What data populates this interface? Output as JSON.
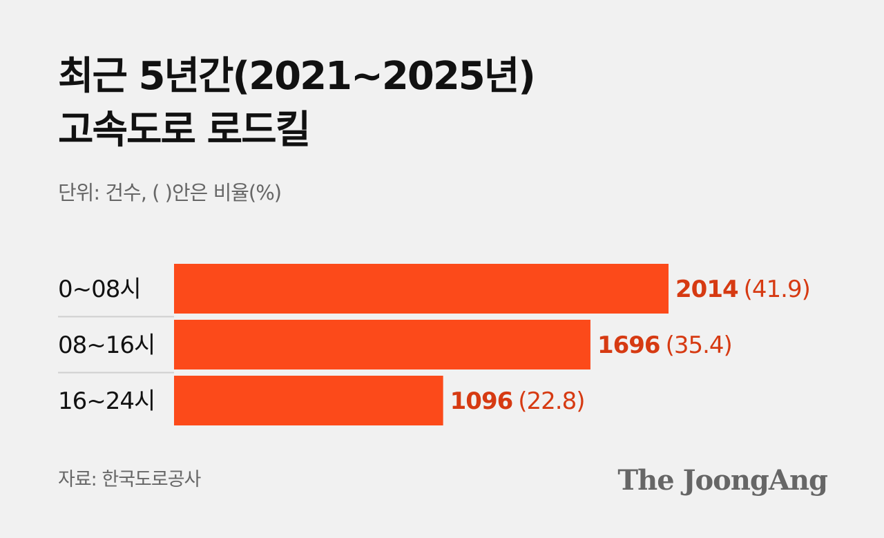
{
  "title": {
    "line1": "최근 5년간(2021~2025년)",
    "line2": "고속도로 로드킬"
  },
  "unit_note": "단위: 건수, ( )안은 비율(%)",
  "source": "자료: 한국도로공사",
  "logo": "The JoongAng",
  "colors": {
    "bar": "#fc4a1a",
    "value_label": "#d63a12",
    "background": "#f1f1f1"
  },
  "chart_data": {
    "type": "bar",
    "orientation": "horizontal",
    "categories": [
      "0~08시",
      "08~16시",
      "16~24시"
    ],
    "values": [
      2014,
      1696,
      1096
    ],
    "percentages": [
      "41.9",
      "35.4",
      "22.8"
    ],
    "value_labels": [
      "2014",
      "1696",
      "1096"
    ],
    "percent_labels": [
      "(41.9)",
      "(35.4)",
      "(22.8)"
    ],
    "xlim": [
      0,
      2014
    ],
    "grid": false,
    "legend": "none"
  }
}
